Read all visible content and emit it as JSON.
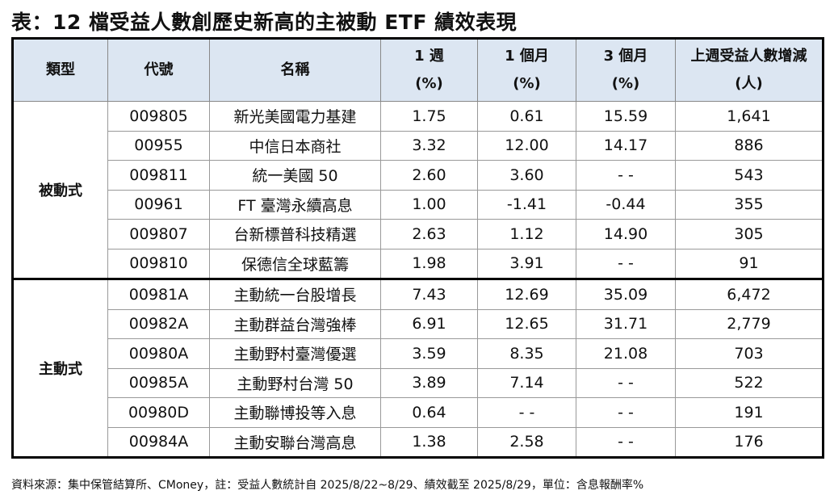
{
  "title": "表：12 檔受益人數創歷史新高的主被動 ETF 績效表現",
  "table": {
    "header": [
      [
        "類型"
      ],
      [
        "代號"
      ],
      [
        "名稱"
      ],
      [
        "1 週",
        "(%)"
      ],
      [
        "1 個月",
        "(%)"
      ],
      [
        "3 個月",
        "(%)"
      ],
      [
        "上週受益人數增減",
        "(人)"
      ]
    ],
    "groups": [
      {
        "name": "被動式",
        "rows": [
          [
            "009805",
            "新光美國電力基建",
            "1.75",
            "0.61",
            "15.59",
            "1,641"
          ],
          [
            "00955",
            "中信日本商社",
            "3.32",
            "12.00",
            "14.17",
            "886"
          ],
          [
            "009811",
            "統一美國 50",
            "2.60",
            "3.60",
            "- -",
            "543"
          ],
          [
            "00961",
            "FT 臺灣永續高息",
            "1.00",
            "-1.41",
            "-0.44",
            "355"
          ],
          [
            "009807",
            "台新標普科技精選",
            "2.63",
            "1.12",
            "14.90",
            "305"
          ],
          [
            "009810",
            "保德信全球藍籌",
            "1.98",
            "3.91",
            "- -",
            "91"
          ]
        ]
      },
      {
        "name": "主動式",
        "rows": [
          [
            "00981A",
            "主動統一台股增長",
            "7.43",
            "12.69",
            "35.09",
            "6,472"
          ],
          [
            "00982A",
            "主動群益台灣強棒",
            "6.91",
            "12.65",
            "31.71",
            "2,779"
          ],
          [
            "00980A",
            "主動野村臺灣優選",
            "3.59",
            "8.35",
            "21.08",
            "703"
          ],
          [
            "00985A",
            "主動野村台灣 50",
            "3.89",
            "7.14",
            "- -",
            "522"
          ],
          [
            "00980D",
            "主動聯博投等入息",
            "0.64",
            "- -",
            "- -",
            "191"
          ],
          [
            "00984A",
            "主動安聯台灣高息",
            "1.38",
            "2.58",
            "- -",
            "176"
          ]
        ]
      }
    ]
  },
  "footnote": "資料來源：集中保管結算所、CMoney，註：受益人數統計自 2025/8/22~8/29、績效截至 2025/8/29，單位：含息報酬率%"
}
